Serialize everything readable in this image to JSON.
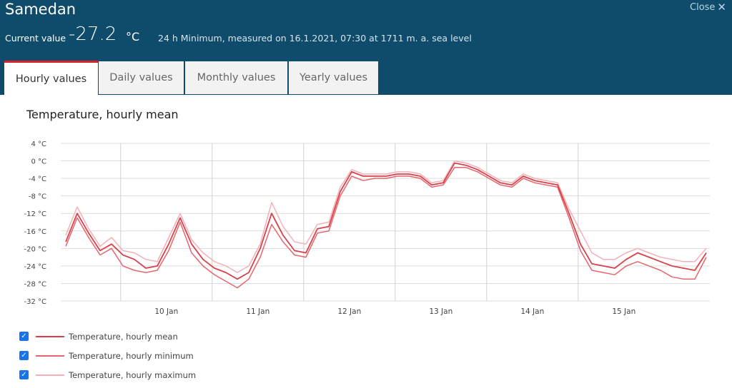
{
  "header": {
    "station": "Samedan",
    "close_label": "Close",
    "current_label": "Current value",
    "current_value": "-27.2",
    "current_unit": "°C",
    "current_description": "24 h Minimum, measured on 16.1.2021, 07:30 at 1711 m. a. sea level"
  },
  "tabs": [
    {
      "label": "Hourly values",
      "active": true
    },
    {
      "label": "Daily values",
      "active": false
    },
    {
      "label": "Monthly values",
      "active": false
    },
    {
      "label": "Yearly values",
      "active": false
    }
  ],
  "icons": {
    "close": "close-x-icon",
    "checkbox": "checkbox-checked-icon"
  },
  "colors": {
    "header_bg": "#0f4c6b",
    "active_tab_border": "#d8232a",
    "mean": "#d9414a",
    "min": "#e8646c",
    "max": "#f4b0b6",
    "checkbox": "#1a73e8"
  },
  "chart_data": {
    "type": "line",
    "title": "Temperature, hourly mean",
    "ylim": [
      -32,
      4
    ],
    "yticks": [
      "4 °C",
      "0 °C",
      "-4 °C",
      "-8 °C",
      "-12 °C",
      "-16 °C",
      "-20 °C",
      "-24 °C",
      "-28 °C",
      "-32 °C"
    ],
    "x_range": [
      "2021-01-09T00:00",
      "2021-01-16T00:00"
    ],
    "xticks": [
      "10 Jan",
      "11 Jan",
      "12 Jan",
      "13 Jan",
      "14 Jan",
      "15 Jan"
    ],
    "grid": true,
    "legend_position": "bottom-left",
    "x": [
      "9 Jan 00:00",
      "9 Jan 03:00",
      "9 Jan 06:00",
      "9 Jan 09:00",
      "9 Jan 12:00",
      "9 Jan 15:00",
      "9 Jan 18:00",
      "9 Jan 21:00",
      "10 Jan 00:00",
      "10 Jan 03:00",
      "10 Jan 06:00",
      "10 Jan 09:00",
      "10 Jan 12:00",
      "10 Jan 15:00",
      "10 Jan 18:00",
      "10 Jan 21:00",
      "11 Jan 00:00",
      "11 Jan 03:00",
      "11 Jan 06:00",
      "11 Jan 09:00",
      "11 Jan 12:00",
      "11 Jan 15:00",
      "11 Jan 18:00",
      "11 Jan 21:00",
      "12 Jan 00:00",
      "12 Jan 03:00",
      "12 Jan 06:00",
      "12 Jan 09:00",
      "12 Jan 12:00",
      "12 Jan 15:00",
      "12 Jan 18:00",
      "12 Jan 21:00",
      "13 Jan 00:00",
      "13 Jan 03:00",
      "13 Jan 06:00",
      "13 Jan 09:00",
      "13 Jan 12:00",
      "13 Jan 15:00",
      "13 Jan 18:00",
      "13 Jan 21:00",
      "14 Jan 00:00",
      "14 Jan 03:00",
      "14 Jan 06:00",
      "14 Jan 09:00",
      "14 Jan 12:00",
      "14 Jan 15:00",
      "14 Jan 18:00",
      "14 Jan 21:00",
      "15 Jan 00:00",
      "15 Jan 03:00",
      "15 Jan 06:00",
      "15 Jan 09:00",
      "15 Jan 12:00",
      "15 Jan 15:00",
      "15 Jan 18:00",
      "15 Jan 21:00",
      "16 Jan 00:00"
    ],
    "series": [
      {
        "name": "Temperature, hourly mean",
        "color": "#d9414a",
        "values": [
          -18.5,
          -12,
          -16.5,
          -20.5,
          -19,
          -21.5,
          -22.5,
          -24.5,
          -24,
          -19,
          -13,
          -19,
          -22.5,
          -24.5,
          -25.5,
          -27,
          -25.5,
          -20,
          -12,
          -17,
          -20.5,
          -21,
          -15.5,
          -15,
          -7,
          -2.5,
          -3.5,
          -3.5,
          -3.5,
          -3,
          -3,
          -3.5,
          -5.5,
          -5,
          -0.5,
          -1,
          -2,
          -3.5,
          -5,
          -5.5,
          -3.5,
          -4.5,
          -5,
          -5.5,
          -12,
          -19,
          -23.5,
          -24,
          -24.5,
          -22.5,
          -21,
          -22,
          -23,
          -24,
          -24.5,
          -25,
          -21
        ]
      },
      {
        "name": "Temperature, hourly minimum",
        "color": "#e8646c",
        "values": [
          -19.5,
          -13,
          -17.5,
          -21.5,
          -20,
          -24,
          -25,
          -25.5,
          -25,
          -20.5,
          -14,
          -21,
          -24,
          -26,
          -27.5,
          -29,
          -27,
          -22,
          -14.5,
          -18.5,
          -21.5,
          -22,
          -16.5,
          -16,
          -8,
          -3.5,
          -4.5,
          -4,
          -4,
          -3.5,
          -3.5,
          -4,
          -6,
          -5.5,
          -1.5,
          -1.5,
          -2.5,
          -4,
          -5.5,
          -6,
          -4,
          -5,
          -5.5,
          -6,
          -13,
          -20.5,
          -25,
          -25.5,
          -26,
          -24,
          -23,
          -24,
          -25,
          -26.5,
          -27,
          -27,
          -22
        ]
      },
      {
        "name": "Temperature, hourly maximum",
        "color": "#f4b0b6",
        "values": [
          -17,
          -10.5,
          -15.5,
          -19.5,
          -17.5,
          -20.5,
          -21,
          -22.5,
          -23,
          -17.5,
          -12,
          -18,
          -21,
          -23,
          -24,
          -25.5,
          -24,
          -19,
          -9.5,
          -15,
          -18.5,
          -19,
          -14.5,
          -14,
          -6,
          -2,
          -3,
          -3,
          -3,
          -2.5,
          -2.5,
          -3,
          -5,
          -4.5,
          0,
          -0.5,
          -1.5,
          -3,
          -4.5,
          -5,
          -3,
          -4,
          -4.5,
          -5,
          -11,
          -16,
          -21,
          -22.5,
          -22.5,
          -21,
          -20,
          -21,
          -22,
          -22.5,
          -23,
          -23,
          -20
        ]
      }
    ]
  },
  "legend": [
    {
      "label": "Temperature, hourly mean",
      "checked": true
    },
    {
      "label": "Temperature, hourly minimum",
      "checked": true
    },
    {
      "label": "Temperature, hourly maximum",
      "checked": true
    }
  ]
}
